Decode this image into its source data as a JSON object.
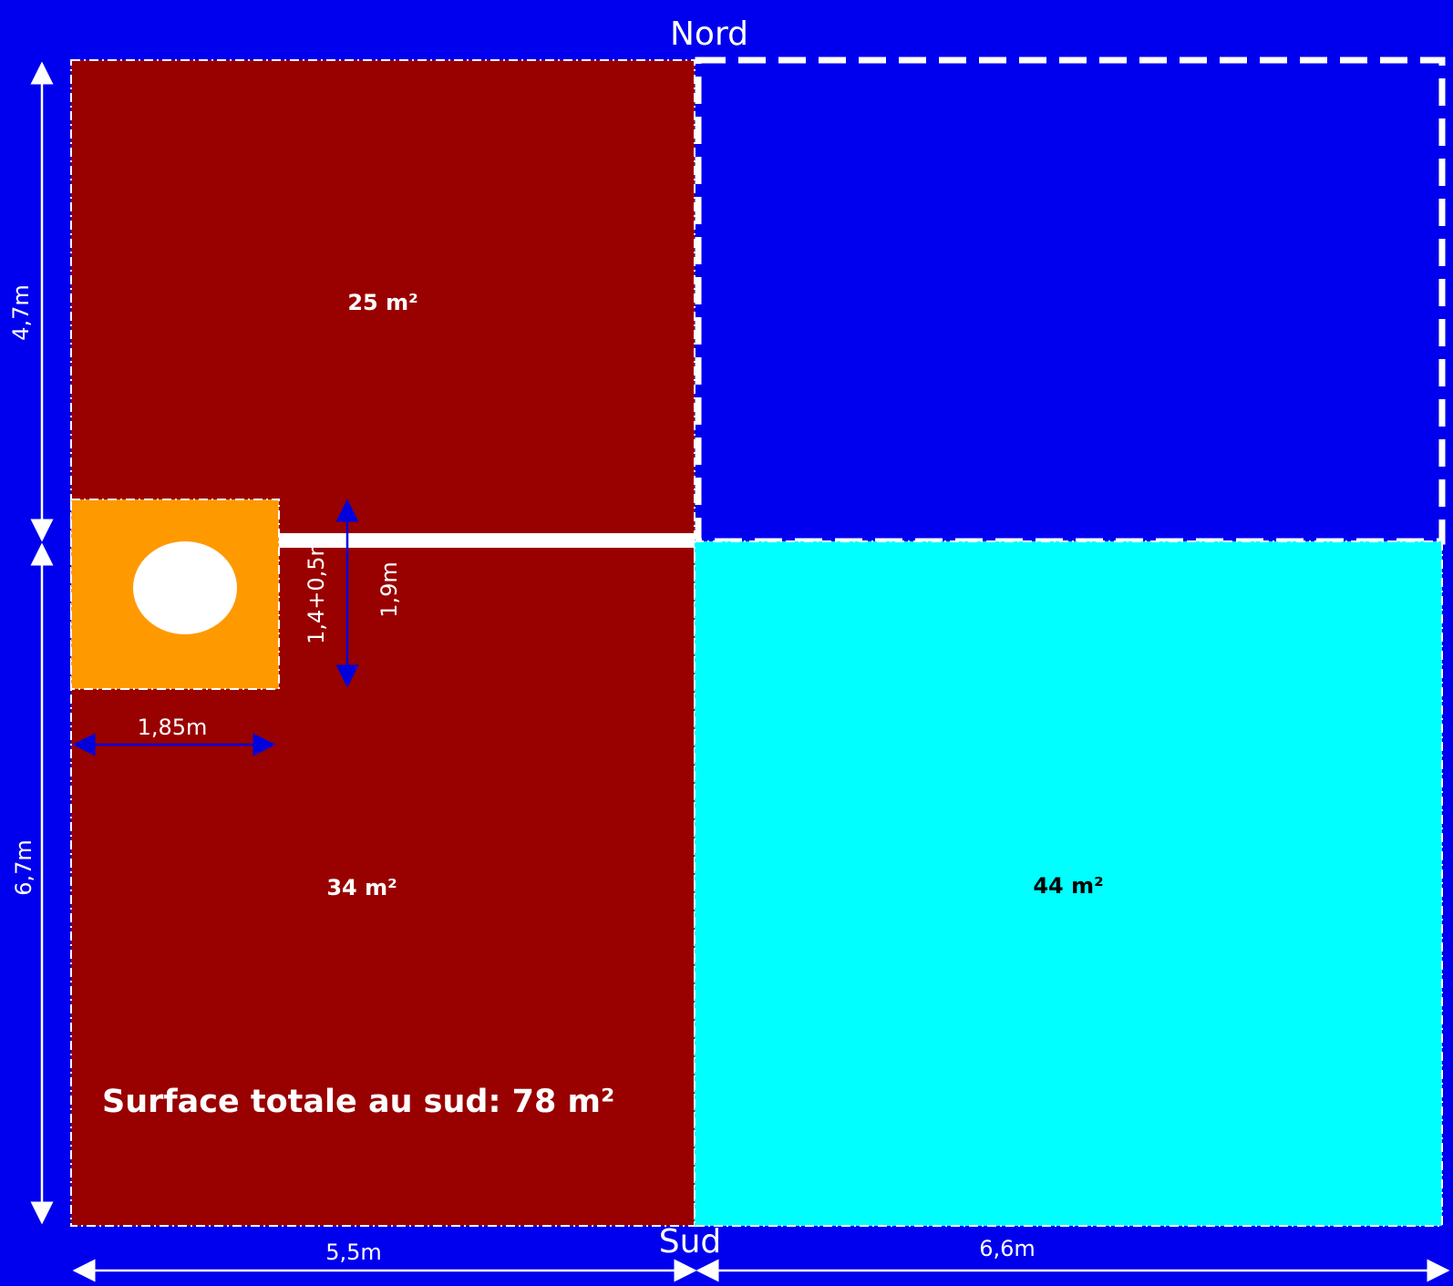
{
  "directions": {
    "north": "Nord",
    "south": "Sud"
  },
  "zones": {
    "north_west": {
      "area": "25 m²"
    },
    "south_west": {
      "area": "34 m²"
    },
    "south_east": {
      "area": "44 m²"
    }
  },
  "total": "Surface totale au sud: 78 m²",
  "dimensions": {
    "height_north": "4,7m",
    "height_south": "6,7m",
    "width_west": "5,5m",
    "width_east": "6,6m",
    "feature_width": "1,85m",
    "feature_height": "1,4+0,5m",
    "feature_height_total": "1,9m"
  },
  "colors": {
    "background": "#0000ee",
    "brick": "#990000",
    "cyan": "#00ffff",
    "orange": "#ff9900",
    "white": "#ffffff",
    "arrow_blue": "#0000dd"
  }
}
